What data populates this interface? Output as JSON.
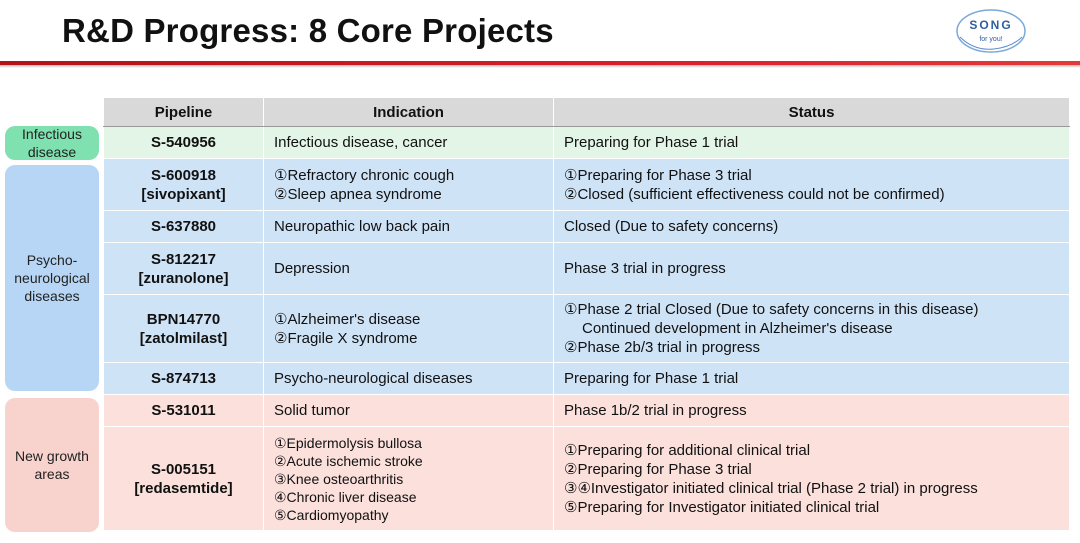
{
  "title": "R&D Progress: 8 Core Projects",
  "logo": {
    "line1": "SONG",
    "line2": "for you!"
  },
  "categories": {
    "infectious": "Infectious disease",
    "psycho": [
      "Psycho-",
      "neurological",
      "diseases"
    ],
    "new_growth": [
      "New growth",
      "areas"
    ]
  },
  "table": {
    "headers": [
      "Pipeline",
      "Indication",
      "Status"
    ],
    "rows": [
      {
        "pipeline": [
          "S-540956"
        ],
        "indication": [
          "Infectious disease, cancer"
        ],
        "status": [
          "Preparing for Phase 1 trial"
        ]
      },
      {
        "pipeline": [
          "S-600918",
          "[sivopixant]"
        ],
        "indication": [
          "①Refractory chronic cough",
          "②Sleep apnea syndrome"
        ],
        "status": [
          "①Preparing for Phase 3 trial",
          "②Closed  (sufficient effectiveness could not be confirmed)"
        ]
      },
      {
        "pipeline": [
          "S-637880"
        ],
        "indication": [
          "Neuropathic low back pain"
        ],
        "status": [
          "Closed (Due to safety concerns)"
        ]
      },
      {
        "pipeline": [
          "S-812217",
          "[zuranolone]"
        ],
        "indication": [
          "Depression"
        ],
        "status": [
          "Phase 3 trial in progress"
        ]
      },
      {
        "pipeline": [
          "BPN14770",
          "[zatolmilast]"
        ],
        "indication": [
          "①Alzheimer's disease",
          "②Fragile X syndrome"
        ],
        "status": [
          "①Phase 2 trial Closed (Due to safety concerns in this disease)",
          "Continued development in Alzheimer's disease",
          "②Phase 2b/3 trial in progress"
        ]
      },
      {
        "pipeline": [
          "S-874713"
        ],
        "indication": [
          "Psycho-neurological diseases"
        ],
        "status": [
          "Preparing for Phase 1 trial"
        ]
      },
      {
        "pipeline": [
          "S-531011"
        ],
        "indication": [
          "Solid tumor"
        ],
        "status": [
          "Phase 1b/2 trial in progress"
        ]
      },
      {
        "pipeline": [
          "S-005151",
          "[redasemtide]"
        ],
        "indication": [
          "①Epidermolysis bullosa",
          "②Acute ischemic stroke",
          "③Knee osteoarthritis",
          "④Chronic liver disease",
          "⑤Cardiomyopathy"
        ],
        "status": [
          "①Preparing for additional clinical trial",
          "②Preparing for Phase 3 trial",
          "③④Investigator initiated clinical trial (Phase 2 trial) in progress",
          "⑤Preparing for Investigator initiated clinical trial"
        ]
      }
    ]
  }
}
